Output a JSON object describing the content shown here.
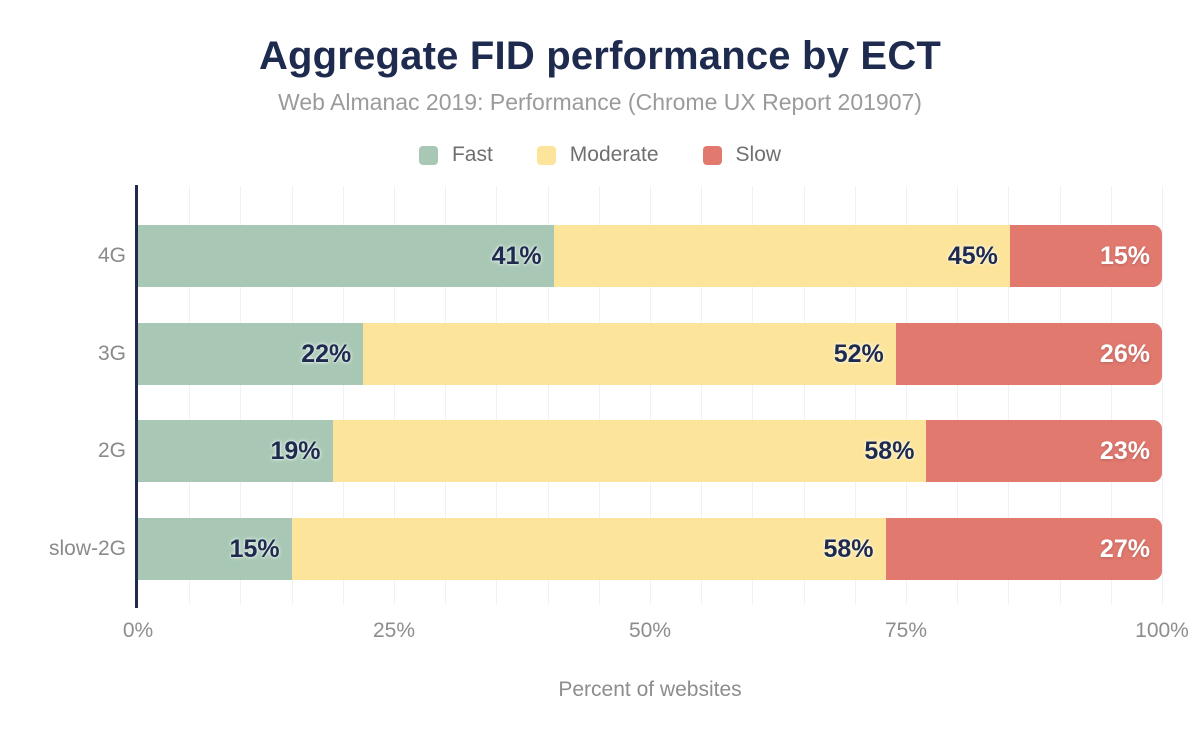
{
  "chart_data": {
    "type": "bar",
    "orientation": "horizontal",
    "stacked": true,
    "title": "Aggregate FID performance by ECT",
    "subtitle": "Web Almanac 2019: Performance (Chrome UX Report 201907)",
    "xlabel": "Percent of websites",
    "categories": [
      "4G",
      "3G",
      "2G",
      "slow-2G"
    ],
    "series": [
      {
        "name": "Fast",
        "color": "#a8c8b5",
        "label_style": "dark",
        "values": [
          41,
          22,
          19,
          15
        ]
      },
      {
        "name": "Moderate",
        "color": "#fce49a",
        "label_style": "dark",
        "values": [
          45,
          52,
          58,
          58
        ]
      },
      {
        "name": "Slow",
        "color": "#e1796f",
        "label_style": "light",
        "values": [
          15,
          26,
          23,
          27
        ]
      }
    ],
    "data_labels": [
      [
        "41%",
        "45%",
        "15%"
      ],
      [
        "22%",
        "52%",
        "26%"
      ],
      [
        "19%",
        "58%",
        "23%"
      ],
      [
        "15%",
        "58%",
        "27%"
      ]
    ],
    "x_ticks": [
      "0%",
      "25%",
      "50%",
      "75%",
      "100%"
    ],
    "xlim": [
      0,
      100
    ],
    "grid": "vertical, minor every 5%",
    "legend_position": "top"
  },
  "colors": {
    "title": "#1e2b4e",
    "subtitle": "#9b9b9b",
    "axis_line": "#1e2b4e",
    "gridline": "#f1f1f4",
    "tick_text": "#8d8d8d",
    "category_text": "#8a8a8a",
    "legend_text": "#6f6f6f",
    "label_on_light_segment": "#1e2b4e",
    "label_on_slow_segment": "#ffffff",
    "background": "#ffffff"
  }
}
